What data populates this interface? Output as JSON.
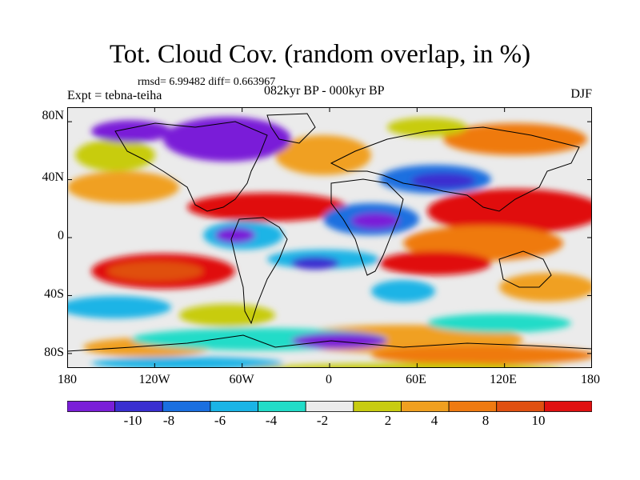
{
  "map": {
    "title": "Tot. Cloud Cov. (random overlap, in %)",
    "stats": "rmsd= 6.99482 diff= 0.663967",
    "experiment": "Expt = tebna-teiha",
    "period": "082kyr BP - 000kyr BP",
    "season": "DJF",
    "lat_ticks": [
      "80N",
      "40N",
      "0",
      "40S",
      "80S"
    ],
    "lat_values": [
      80,
      40,
      0,
      -40,
      -80
    ],
    "lon_ticks": [
      "180",
      "120W",
      "60W",
      "0",
      "60E",
      "120E",
      "180"
    ],
    "lon_values": [
      -180,
      -120,
      -60,
      0,
      60,
      120,
      180
    ]
  },
  "colorbar": {
    "labels": [
      "-10",
      "-8",
      "-6",
      "-4",
      "-2",
      "2",
      "4",
      "8",
      "10"
    ],
    "colors": [
      "#7a1fd8",
      "#3a2fd0",
      "#1a6fe0",
      "#1ab4e6",
      "#22dcc8",
      "#ebebeb",
      "#c8cc10",
      "#f0a020",
      "#ef7a10",
      "#e05010",
      "#e01010"
    ]
  }
}
